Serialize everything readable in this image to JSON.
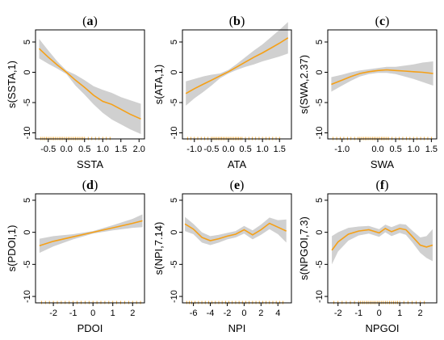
{
  "colors": {
    "fit": "#f5a017",
    "ci": "#d0d0d0",
    "rug": "#f5a017"
  },
  "chart_data": [
    {
      "type": "line",
      "tag": "a",
      "xlabel": "SSTA",
      "ylabel": "s(SSTA,1)",
      "xlim": [
        -0.85,
        2.15
      ],
      "ylim": [
        -11,
        7
      ],
      "xticks": [
        -0.5,
        0.0,
        0.5,
        1.0,
        1.5,
        2.0
      ],
      "xticklabels": [
        "-0.5",
        "0.0",
        "0.5",
        "1.0",
        "1.5",
        "2.0"
      ],
      "yticks": [
        -10,
        -5,
        0,
        5
      ],
      "yticklabels": [
        "-10",
        "-5",
        "0",
        "5"
      ],
      "x": [
        -0.75,
        -0.5,
        -0.25,
        0.0,
        0.25,
        0.5,
        0.75,
        1.0,
        1.25,
        1.5,
        1.75,
        2.05
      ],
      "y": [
        3.9,
        2.5,
        1.2,
        0.0,
        -1.3,
        -2.5,
        -3.8,
        -4.8,
        -5.3,
        -6.1,
        -6.9,
        -7.7
      ],
      "lower": [
        2.3,
        1.4,
        0.6,
        -0.3,
        -2.2,
        -3.7,
        -5.3,
        -6.7,
        -7.8,
        -8.6,
        -9.4,
        -10.2
      ],
      "upper": [
        5.5,
        3.6,
        1.8,
        0.3,
        -0.4,
        -1.3,
        -2.3,
        -2.9,
        -3.4,
        -4.1,
        -4.6,
        -5.2
      ],
      "rug": [
        -0.7,
        -0.65,
        -0.6,
        -0.55,
        -0.5,
        -0.45,
        -0.4,
        -0.35,
        -0.3,
        -0.25,
        -0.2,
        -0.15,
        -0.1,
        -0.05,
        0.0,
        0.05,
        0.1,
        0.15,
        0.2,
        0.25,
        0.3,
        0.35,
        0.4,
        0.45,
        0.5,
        0.6,
        0.7,
        0.8,
        0.9,
        1.0,
        1.1,
        1.2
      ]
    },
    {
      "type": "line",
      "tag": "b",
      "xlabel": "ATA",
      "ylabel": "s(ATA,1)",
      "xlim": [
        -1.35,
        1.85
      ],
      "ylim": [
        -11,
        7
      ],
      "xticks": [
        -1.0,
        -0.5,
        0.0,
        0.5,
        1.0,
        1.5
      ],
      "xticklabels": [
        "-1.0",
        "-0.5",
        "0.0",
        "0.5",
        "1.0",
        "1.5"
      ],
      "yticks": [
        -10,
        -5,
        0,
        5
      ],
      "yticklabels": [
        "-10",
        "-5",
        "0",
        "5"
      ],
      "x": [
        -1.25,
        -1.0,
        -0.75,
        -0.5,
        -0.25,
        0.0,
        0.25,
        0.5,
        0.75,
        1.0,
        1.25,
        1.5,
        1.75
      ],
      "y": [
        -3.5,
        -2.7,
        -2.0,
        -1.3,
        -0.6,
        0.1,
        0.9,
        1.7,
        2.5,
        3.2,
        4.0,
        4.8,
        5.7
      ],
      "lower": [
        -5.5,
        -4.3,
        -3.3,
        -2.2,
        -1.0,
        -0.2,
        0.4,
        0.9,
        1.3,
        1.8,
        2.2,
        2.6,
        3.1
      ],
      "upper": [
        -1.5,
        -1.1,
        -0.7,
        -0.4,
        -0.2,
        0.4,
        1.4,
        2.5,
        3.6,
        4.6,
        5.8,
        7.0,
        8.3
      ],
      "rug": [
        -1.2,
        -1.1,
        -1.0,
        -0.9,
        -0.8,
        -0.7,
        -0.6,
        -0.5,
        -0.45,
        -0.4,
        -0.35,
        -0.3,
        -0.25,
        -0.2,
        -0.15,
        -0.1,
        -0.05,
        0.0,
        0.05,
        0.1,
        0.15,
        0.2,
        0.25,
        0.3,
        0.35,
        0.4,
        0.5,
        0.6,
        0.7,
        0.8,
        0.9,
        1.0,
        1.1,
        1.2,
        1.3,
        1.4,
        1.5
      ]
    },
    {
      "type": "line",
      "tag": "c",
      "xlabel": "SWA",
      "ylabel": "s(SWA,2.37)",
      "xlim": [
        -1.4,
        1.65
      ],
      "ylim": [
        -11,
        7
      ],
      "xticks": [
        -1.0,
        -0.5,
        0.0,
        0.5,
        1.0,
        1.5
      ],
      "xticklabels": [
        "-1.0",
        "",
        "0.0",
        "0.5",
        "1.0",
        "1.5"
      ],
      "yticks": [
        -10,
        -5,
        0,
        5
      ],
      "yticklabels": [
        "-10",
        "-5",
        "0",
        "5"
      ],
      "x": [
        -1.3,
        -1.0,
        -0.75,
        -0.5,
        -0.25,
        0.0,
        0.25,
        0.5,
        0.75,
        1.0,
        1.25,
        1.55
      ],
      "y": [
        -2.0,
        -1.3,
        -0.7,
        -0.2,
        0.1,
        0.3,
        0.4,
        0.3,
        0.2,
        0.1,
        0.0,
        -0.2
      ],
      "lower": [
        -3.2,
        -2.2,
        -1.4,
        -0.7,
        -0.3,
        -0.1,
        -0.1,
        -0.3,
        -0.7,
        -1.1,
        -1.6,
        -2.2
      ],
      "upper": [
        -0.8,
        -0.4,
        0.0,
        0.3,
        0.5,
        0.7,
        0.9,
        0.9,
        1.1,
        1.3,
        1.6,
        1.8
      ],
      "rug": [
        -1.25,
        -1.15,
        -1.05,
        -0.95,
        -0.85,
        -0.75,
        -0.65,
        -0.55,
        -0.5,
        -0.45,
        -0.4,
        -0.35,
        -0.3,
        -0.25,
        -0.2,
        -0.15,
        -0.1,
        -0.05,
        0.0,
        0.05,
        0.1,
        0.15,
        0.2,
        0.25,
        0.3,
        0.4,
        0.5,
        0.6,
        0.7,
        0.8,
        0.9,
        1.0,
        1.1,
        1.2,
        1.3,
        1.4,
        1.5
      ]
    },
    {
      "type": "line",
      "tag": "d",
      "xlabel": "PDOI",
      "ylabel": "s(PDOI,1)",
      "xlim": [
        -2.9,
        2.6
      ],
      "ylim": [
        -11,
        6
      ],
      "xticks": [
        -2,
        -1,
        0,
        1,
        2
      ],
      "xticklabels": [
        "-2",
        "-1",
        "0",
        "1",
        "2"
      ],
      "yticks": [
        -10,
        -5,
        0,
        5
      ],
      "yticklabels": [
        "-10",
        "-5",
        "0",
        "5"
      ],
      "x": [
        -2.7,
        -2.0,
        -1.0,
        0.0,
        1.0,
        2.0,
        2.5
      ],
      "y": [
        -2.1,
        -1.4,
        -0.7,
        0.0,
        0.7,
        1.4,
        1.8
      ],
      "lower": [
        -3.2,
        -2.2,
        -1.1,
        -0.2,
        0.3,
        0.7,
        0.8
      ],
      "upper": [
        -1.0,
        -0.6,
        -0.3,
        0.2,
        1.1,
        2.1,
        2.8
      ],
      "rug": [
        -2.6,
        -2.4,
        -2.2,
        -2.0,
        -1.8,
        -1.6,
        -1.4,
        -1.2,
        -1.0,
        -0.8,
        -0.6,
        -0.4,
        -0.2,
        0.0,
        0.2,
        0.4,
        0.6,
        0.8,
        1.0,
        1.2,
        1.4,
        1.6,
        1.8,
        2.0,
        2.2,
        2.4
      ]
    },
    {
      "type": "line",
      "tag": "e",
      "xlabel": "NPI",
      "ylabel": "s(NPI,7.14)",
      "xlim": [
        -7.3,
        5.6
      ],
      "ylim": [
        -11,
        6
      ],
      "xticks": [
        -6,
        -4,
        -2,
        0,
        2,
        4
      ],
      "xticklabels": [
        "-6",
        "-4",
        "-2",
        "0",
        "2",
        "4"
      ],
      "yticks": [
        -10,
        -5,
        0,
        5
      ],
      "yticklabels": [
        "-10",
        "-5",
        "0",
        "5"
      ],
      "x": [
        -7.0,
        -6.0,
        -5.0,
        -4.0,
        -3.0,
        -2.0,
        -1.0,
        0.0,
        1.0,
        2.0,
        3.0,
        4.0,
        5.0
      ],
      "y": [
        1.3,
        0.5,
        -0.8,
        -1.3,
        -1.0,
        -0.6,
        -0.3,
        0.4,
        -0.4,
        0.4,
        1.4,
        0.8,
        0.2
      ],
      "lower": [
        0.2,
        -0.3,
        -1.6,
        -2.0,
        -1.6,
        -1.1,
        -0.8,
        -0.2,
        -1.1,
        -0.4,
        0.5,
        -0.3,
        -1.6
      ],
      "upper": [
        2.4,
        1.3,
        0.0,
        -0.6,
        -0.4,
        -0.1,
        0.2,
        1.0,
        0.3,
        1.2,
        2.3,
        1.9,
        2.0
      ],
      "rug": [
        -6.8,
        -6.5,
        -6.2,
        -5.8,
        -5.4,
        -5.0,
        -4.6,
        -4.2,
        -3.8,
        -3.4,
        -3.0,
        -2.6,
        -2.2,
        -1.8,
        -1.4,
        -1.0,
        -0.6,
        -0.2,
        0.2,
        0.6,
        1.0,
        1.4,
        1.8,
        2.2,
        2.6,
        3.0,
        3.4,
        3.8,
        4.2,
        4.6
      ]
    },
    {
      "type": "line",
      "tag": "f",
      "xlabel": "NPGOI",
      "ylabel": "s(NPGOI,7.3)",
      "xlim": [
        -2.5,
        2.8
      ],
      "ylim": [
        -11,
        6
      ],
      "xticks": [
        -2,
        -1,
        0,
        1,
        2
      ],
      "xticklabels": [
        "-2",
        "-1",
        "0",
        "1",
        "2"
      ],
      "yticks": [
        -10,
        -5,
        0,
        5
      ],
      "yticklabels": [
        "-10",
        "-5",
        "0",
        "5"
      ],
      "x": [
        -2.3,
        -2.0,
        -1.5,
        -1.0,
        -0.5,
        0.0,
        0.3,
        0.6,
        1.0,
        1.3,
        1.6,
        2.0,
        2.3,
        2.6
      ],
      "y": [
        -2.8,
        -1.5,
        -0.3,
        0.2,
        0.4,
        -0.1,
        0.6,
        0.1,
        0.6,
        0.4,
        -0.6,
        -2.0,
        -2.3,
        -2.0
      ],
      "lower": [
        -5.0,
        -3.0,
        -1.3,
        -0.5,
        -0.2,
        -0.7,
        0.0,
        -0.6,
        -0.1,
        -0.4,
        -1.5,
        -3.2,
        -4.0,
        -4.5
      ],
      "upper": [
        -0.6,
        0.0,
        0.7,
        0.9,
        1.0,
        0.5,
        1.2,
        0.8,
        1.3,
        1.2,
        0.3,
        -0.8,
        -0.6,
        0.5
      ],
      "rug": [
        -2.2,
        -2.0,
        -1.8,
        -1.6,
        -1.4,
        -1.2,
        -1.0,
        -0.9,
        -0.8,
        -0.7,
        -0.6,
        -0.5,
        -0.4,
        -0.3,
        -0.2,
        -0.1,
        0.0,
        0.1,
        0.2,
        0.3,
        0.4,
        0.5,
        0.6,
        0.7,
        0.8,
        0.9,
        1.0,
        1.2,
        1.4,
        1.6,
        1.8,
        2.0,
        2.2
      ]
    }
  ]
}
